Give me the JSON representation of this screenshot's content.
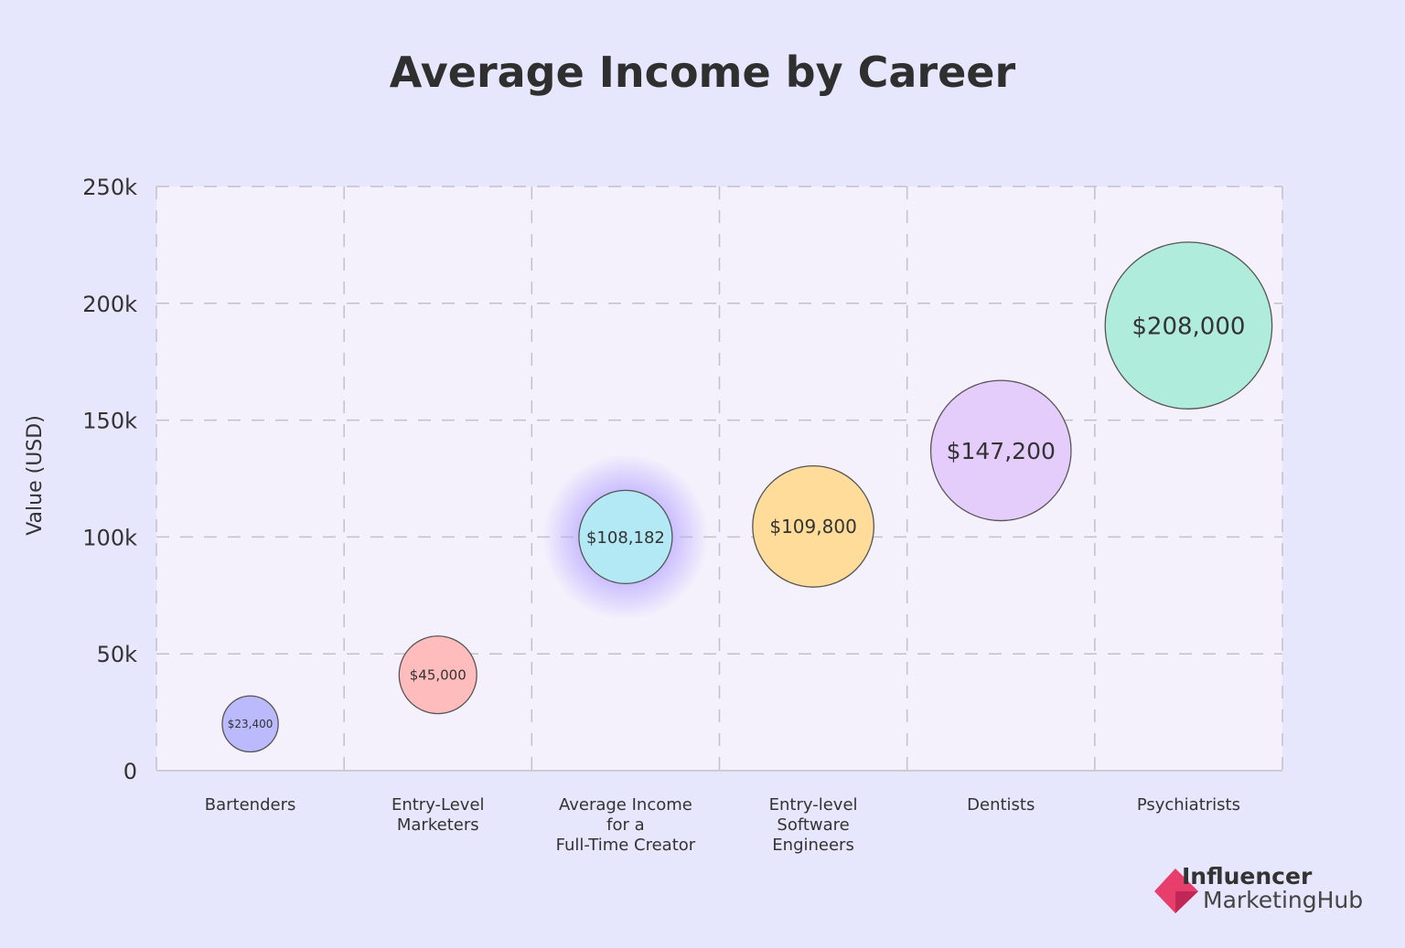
{
  "chart_data": {
    "type": "bubble",
    "title": "Average Income by Career",
    "ylabel": "Value (USD)",
    "xlabel": "",
    "ylim": [
      0,
      250000
    ],
    "yticks": [
      0,
      50000,
      100000,
      150000,
      200000,
      250000
    ],
    "ytick_labels": [
      "0",
      "50k",
      "100k",
      "150k",
      "200k",
      "250k"
    ],
    "grid": true,
    "categories": [
      [
        "Bartenders"
      ],
      [
        "Entry-Level",
        "Marketers"
      ],
      [
        "Average Income",
        "for a",
        "Full-Time Creator"
      ],
      [
        "Entry-level",
        "Software",
        "Engineers"
      ],
      [
        "Dentists"
      ],
      [
        "Psychiatrists"
      ]
    ],
    "points": [
      {
        "category": "Bartenders",
        "y": 20000,
        "value": 23400,
        "label": "$23,400",
        "color": "#babafc",
        "font": 12
      },
      {
        "category": "Entry-Level Marketers",
        "y": 41000,
        "value": 45000,
        "label": "$45,000",
        "color": "#ffbcbc",
        "font": 15
      },
      {
        "category": "Average Income for a Full-Time Creator",
        "y": 100000,
        "value": 108182,
        "label": "$108,182",
        "color": "#b3e8f5",
        "highlight": true,
        "font": 18
      },
      {
        "category": "Entry-level Software Engineers",
        "y": 104500,
        "value": 109800,
        "label": "$109,800",
        "color": "#ffdc9a",
        "font": 20
      },
      {
        "category": "Dentists",
        "y": 137000,
        "value": 147200,
        "label": "$147,200",
        "color": "#e4ccfb",
        "font": 25
      },
      {
        "category": "Psychiatrists",
        "y": 190500,
        "value": 208000,
        "label": "$208,000",
        "color": "#b0ecdc",
        "font": 26
      }
    ]
  },
  "logo": {
    "line1": "Influencer",
    "line2": "MarketingHub",
    "color": "#e83e6c"
  }
}
